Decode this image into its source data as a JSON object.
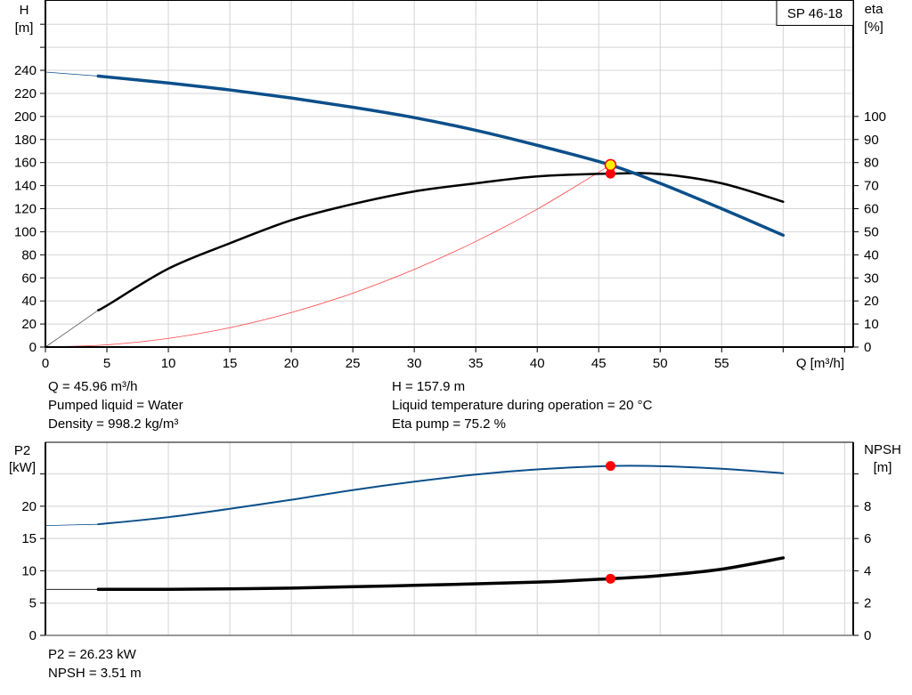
{
  "model_label": "SP 46-18",
  "chart_data": [
    {
      "type": "line",
      "xlabel": "Q [m³/h]",
      "ylabel_left": [
        "H",
        "[m]"
      ],
      "ylabel_right": [
        "eta",
        "[%]"
      ],
      "xlim": [
        0,
        65.7
      ],
      "ylim_left": [
        0,
        301
      ],
      "ylim_right": [
        0,
        150.5
      ],
      "x_ticks": [
        0,
        5,
        10,
        15,
        20,
        25,
        30,
        35,
        40,
        45,
        50,
        55,
        60,
        65
      ],
      "x_tick_labels": [
        "0",
        "5",
        "10",
        "15",
        "20",
        "25",
        "30",
        "35",
        "40",
        "45",
        "50",
        "55"
      ],
      "y_ticks_left": [
        0,
        20,
        40,
        60,
        80,
        100,
        120,
        140,
        160,
        180,
        200,
        220,
        240,
        260,
        280
      ],
      "y_tick_labels_left": [
        "0",
        "20",
        "40",
        "60",
        "80",
        "100",
        "120",
        "140",
        "160",
        "180",
        "200",
        "220",
        "240"
      ],
      "y_tick_labels_right": [
        "0",
        "10",
        "20",
        "30",
        "40",
        "50",
        "60",
        "70",
        "80",
        "90",
        "100"
      ],
      "grid": true,
      "colors": {
        "head": "#0b4f8a",
        "eta": "#000000",
        "system": "#ff4040",
        "duty_fill": "#ffee00",
        "duty_stroke": "#ff0000"
      },
      "series": [
        {
          "key": "head",
          "axis": "left",
          "x": [
            0,
            4.3,
            10,
            15,
            20,
            25,
            30,
            35,
            40,
            45.96,
            50,
            55,
            60
          ],
          "y": [
            238.5,
            235,
            229,
            223,
            216,
            208,
            199,
            188,
            175,
            157.9,
            142,
            120,
            97
          ]
        },
        {
          "key": "eta",
          "axis": "right",
          "x": [
            0,
            4.3,
            5,
            10,
            15,
            20,
            25,
            30,
            35,
            40,
            45.96,
            50,
            55,
            60
          ],
          "y": [
            0,
            16,
            18,
            34,
            45,
            55,
            62,
            67.5,
            71,
            74,
            75.2,
            75,
            71,
            63
          ]
        },
        {
          "key": "system",
          "axis": "left",
          "x": [
            0,
            5,
            10,
            15,
            20,
            25,
            30,
            35,
            40,
            45.96
          ],
          "y": [
            0,
            1.9,
            7.5,
            16.8,
            29.9,
            46.7,
            67.3,
            91.6,
            119.6,
            157.9
          ]
        }
      ],
      "duty_point": {
        "q": 45.96,
        "h": 157.9,
        "eta": 75.2
      }
    },
    {
      "type": "line",
      "ylabel_left": [
        "P2",
        "[kW]"
      ],
      "ylabel_right": [
        "NPSH",
        "[m]"
      ],
      "xlim": [
        0,
        65.7
      ],
      "ylim_left": [
        0,
        29.9
      ],
      "ylim_right": [
        0,
        11.96
      ],
      "y_ticks_left": [
        0,
        5,
        10,
        15,
        20,
        25
      ],
      "y_tick_labels_left": [
        "0",
        "5",
        "10",
        "15",
        "20"
      ],
      "y_tick_labels_right": [
        "0",
        "2",
        "4",
        "6",
        "8"
      ],
      "grid": true,
      "colors": {
        "p2": "#0b4f8a",
        "npsh": "#000000",
        "point": "#ff0000"
      },
      "series": [
        {
          "key": "p2",
          "axis": "left",
          "x": [
            0,
            4.3,
            10,
            15,
            20,
            25,
            30,
            35,
            40,
            45.96,
            50,
            55,
            60
          ],
          "y": [
            17.0,
            17.2,
            18.3,
            19.6,
            21.0,
            22.5,
            23.8,
            24.9,
            25.7,
            26.23,
            26.2,
            25.8,
            25.1
          ]
        },
        {
          "key": "npsh",
          "axis": "right",
          "x": [
            0,
            4.3,
            10,
            20,
            30,
            40,
            45.96,
            50,
            55,
            60
          ],
          "y": [
            2.85,
            2.85,
            2.85,
            2.93,
            3.1,
            3.3,
            3.51,
            3.7,
            4.1,
            4.8
          ]
        }
      ],
      "duty_point": {
        "q": 45.96,
        "p2": 26.23,
        "npsh": 3.51
      }
    }
  ],
  "info_top": {
    "q": "Q = 45.96 m³/h",
    "liquid": "Pumped liquid = Water",
    "density": "Density = 998.2 kg/m³",
    "h": "H = 157.9 m",
    "temperature": "Liquid temperature during operation = 20 °C",
    "eta": "Eta pump = 75.2 %"
  },
  "info_bottom": {
    "p2": "P2 = 26.23 kW",
    "npsh": "NPSH = 3.51 m"
  }
}
